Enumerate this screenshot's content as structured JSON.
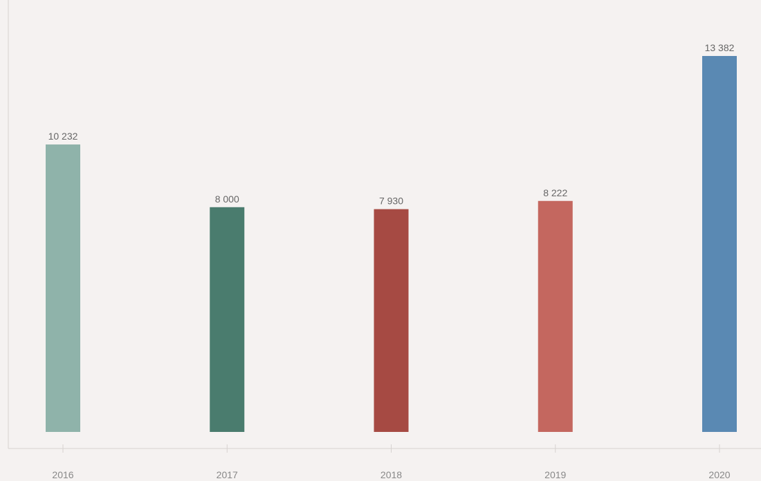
{
  "chart_data": {
    "type": "bar",
    "categories": [
      "2016",
      "2017",
      "2018",
      "2019",
      "2020"
    ],
    "values": [
      10232,
      8000,
      7930,
      8222,
      13382
    ],
    "value_labels": [
      "10 232",
      "8 000",
      "7 930",
      "8 222",
      "13 382"
    ],
    "bar_colors": [
      "#8fb3aa",
      "#4a7c6e",
      "#a64a43",
      "#c4675f",
      "#5a89b3"
    ],
    "ylim": [
      0,
      13382
    ],
    "grid": false,
    "legend": "none",
    "title": "",
    "xlabel": "",
    "ylabel": ""
  },
  "colors": {
    "background": "#f5f2f1",
    "axis": "#d6d2d0",
    "label_text": "#666666",
    "tick_text": "#888888"
  }
}
